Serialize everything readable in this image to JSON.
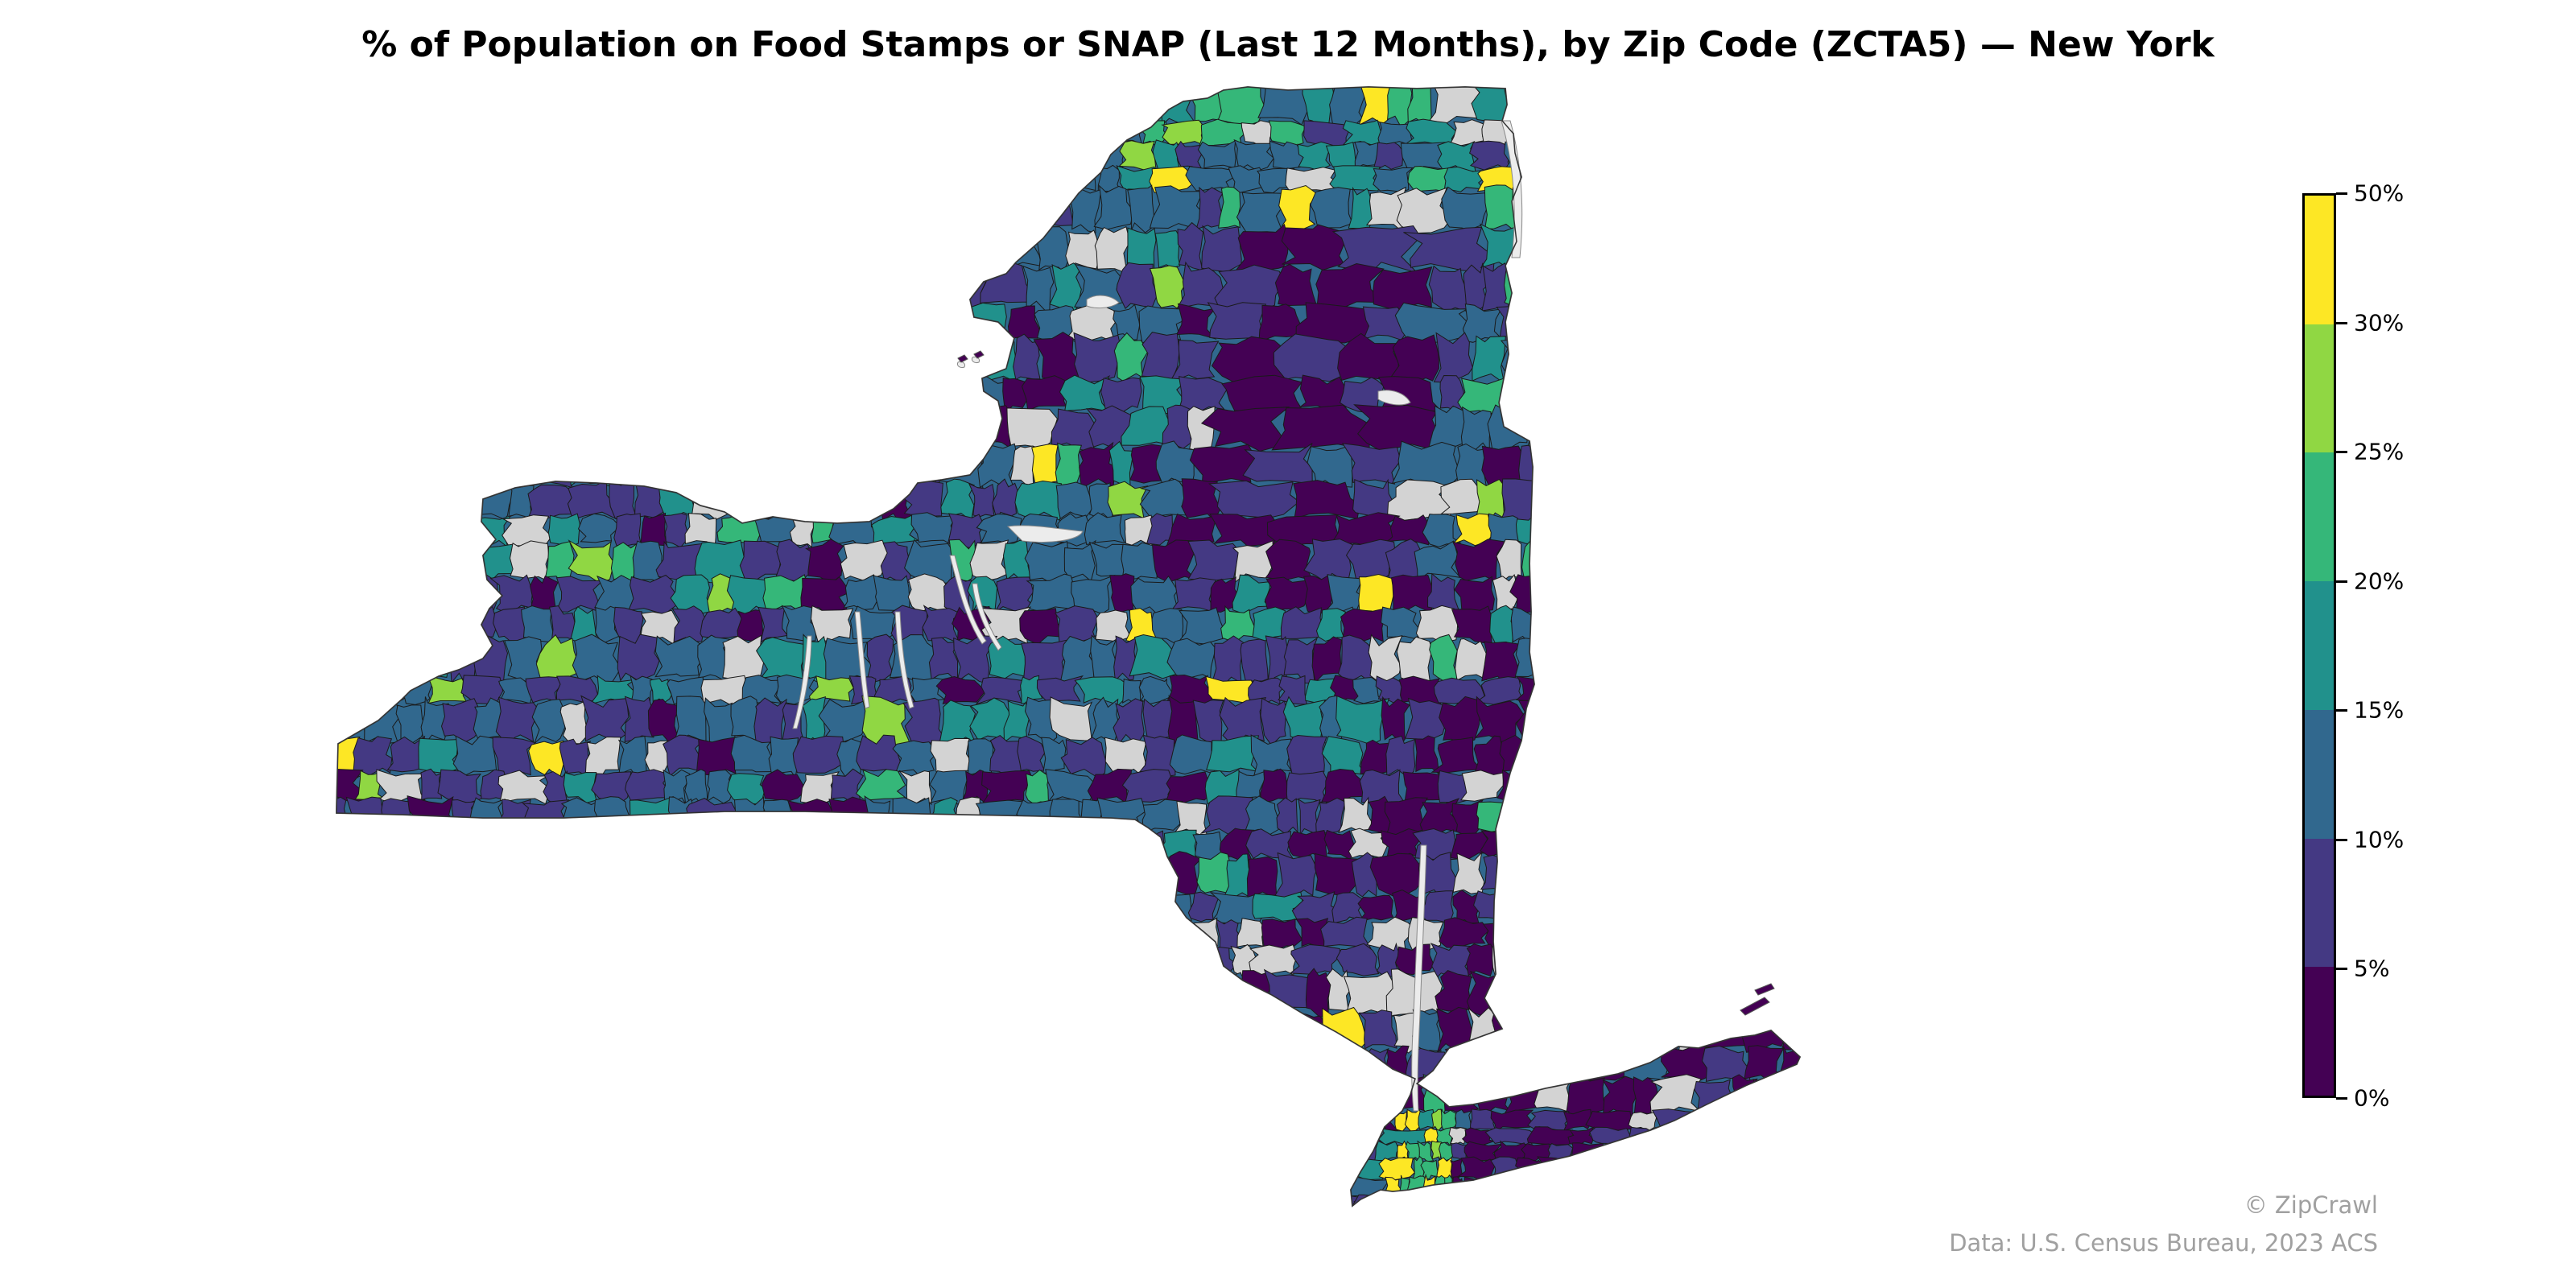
{
  "title": "% of Population on Food Stamps or SNAP (Last 12 Months), by Zip Code (ZCTA5) — New York",
  "chart_data": {
    "type": "choropleth",
    "title": "% of Population on Food Stamps or SNAP (Last 12 Months), by Zip Code (ZCTA5) — New York",
    "geography": "New York State, ZCTA5 zip code tabulation areas",
    "metric": "% of population receiving Food Stamps/SNAP in last 12 months",
    "colorbar": {
      "position": "right",
      "bins": [
        {
          "range": [
            0,
            5
          ],
          "color": "#440154"
        },
        {
          "range": [
            5,
            10
          ],
          "color": "#443983"
        },
        {
          "range": [
            10,
            15
          ],
          "color": "#31688e"
        },
        {
          "range": [
            15,
            20
          ],
          "color": "#21918c"
        },
        {
          "range": [
            20,
            25
          ],
          "color": "#35b779"
        },
        {
          "range": [
            25,
            30
          ],
          "color": "#90d743"
        },
        {
          "range": [
            30,
            50
          ],
          "color": "#fde725"
        }
      ],
      "tick_labels": [
        "0%",
        "5%",
        "10%",
        "15%",
        "20%",
        "25%",
        "30%",
        "50%"
      ],
      "vmin": 0,
      "vmax": 50
    },
    "no_data_color": "#d3d3d3",
    "water_color": "#e8e8e8",
    "observations": [
      "Adirondack / North Country interior predominantly 0-5% and 5-10%",
      "Bronx, northern Manhattan and parts of Brooklyn at 30-50%",
      "Hudson Valley suburbs, Westchester, Long Island mostly 0-10%",
      "Scattered urban zips (Buffalo, Rochester, Syracuse, Binghamton, Newburgh area, Jamestown, Olean) at 30-50%",
      "Western and Southern Tier rural areas mostly 5-20%"
    ]
  },
  "colorbar": {
    "ticks": [
      {
        "label": "0%",
        "value": 0
      },
      {
        "label": "5%",
        "value": 5
      },
      {
        "label": "10%",
        "value": 10
      },
      {
        "label": "15%",
        "value": 15
      },
      {
        "label": "20%",
        "value": 20
      },
      {
        "label": "25%",
        "value": 25
      },
      {
        "label": "30%",
        "value": 30
      },
      {
        "label": "50%",
        "value": 50
      }
    ],
    "colors": [
      "#440154",
      "#443983",
      "#31688e",
      "#21918c",
      "#35b779",
      "#90d743",
      "#fde725"
    ]
  },
  "credits": {
    "copyright": "© ZipCrawl",
    "source": "Data: U.S. Census Bureau, 2023 ACS"
  }
}
